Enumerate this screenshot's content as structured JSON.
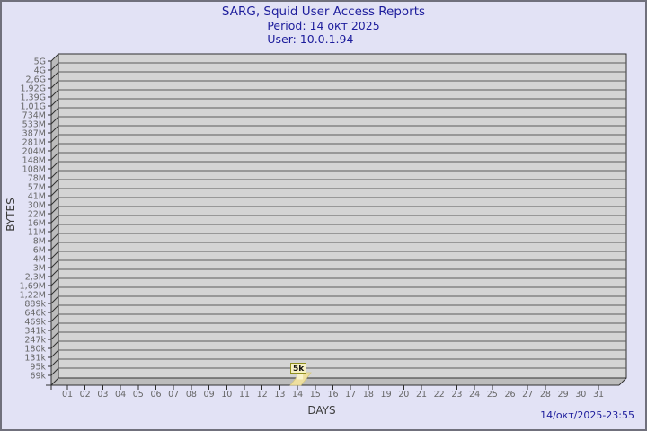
{
  "header": {
    "title": "SARG, Squid User Access Reports",
    "period": "Period: 14 окт 2025",
    "user": "User: 10.0.1.94"
  },
  "footer": {
    "timestamp": "14/окт/2025-23:55"
  },
  "chart_data": {
    "type": "bar",
    "style": "3d-bar",
    "title": "SARG, Squid User Access Reports",
    "subtitle": [
      "Period: 14 окт 2025",
      "User: 10.0.1.94"
    ],
    "xlabel": "DAYS",
    "ylabel": "BYTES",
    "grid": true,
    "legend": null,
    "x_tick_labels": [
      "01",
      "02",
      "03",
      "04",
      "05",
      "06",
      "07",
      "08",
      "09",
      "10",
      "11",
      "12",
      "13",
      "14",
      "15",
      "16",
      "17",
      "18",
      "19",
      "20",
      "21",
      "22",
      "23",
      "24",
      "25",
      "26",
      "27",
      "28",
      "29",
      "30",
      "31"
    ],
    "y_tick_labels": [
      "5G",
      "4G",
      "2,6G",
      "1,92G",
      "1,39G",
      "1,01G",
      "734M",
      "533M",
      "387M",
      "281M",
      "204M",
      "148M",
      "108M",
      "78M",
      "57M",
      "41M",
      "30M",
      "22M",
      "16M",
      "11M",
      "8M",
      "6M",
      "4M",
      "3M",
      "2,3M",
      "1,69M",
      "1,22M",
      "889k",
      "646k",
      "469k",
      "341k",
      "247k",
      "180k",
      "131k",
      "95k",
      "69k"
    ],
    "bars": [
      {
        "x": "14",
        "value_label": "5k",
        "value_bytes": 5000
      }
    ],
    "colors": {
      "background": "#e2e2f5",
      "title_text": "#1d1d9c",
      "plot_face": "#d4d4d4",
      "plot_wall": "#bcbcbc",
      "grid_line": "#5c5c5c",
      "axis_line": "#2f2f2f",
      "tick_text": "#666666",
      "axis_title_text": "#3b3b3b",
      "bar_fill": "#eedfa0",
      "bar_stem": "#f8f2cc",
      "bar_edge": "#d6c87e",
      "bar_label_bg": "#f6f0c4",
      "bar_label_border": "#8f8f1f",
      "bar_label_text": "#111111"
    }
  }
}
